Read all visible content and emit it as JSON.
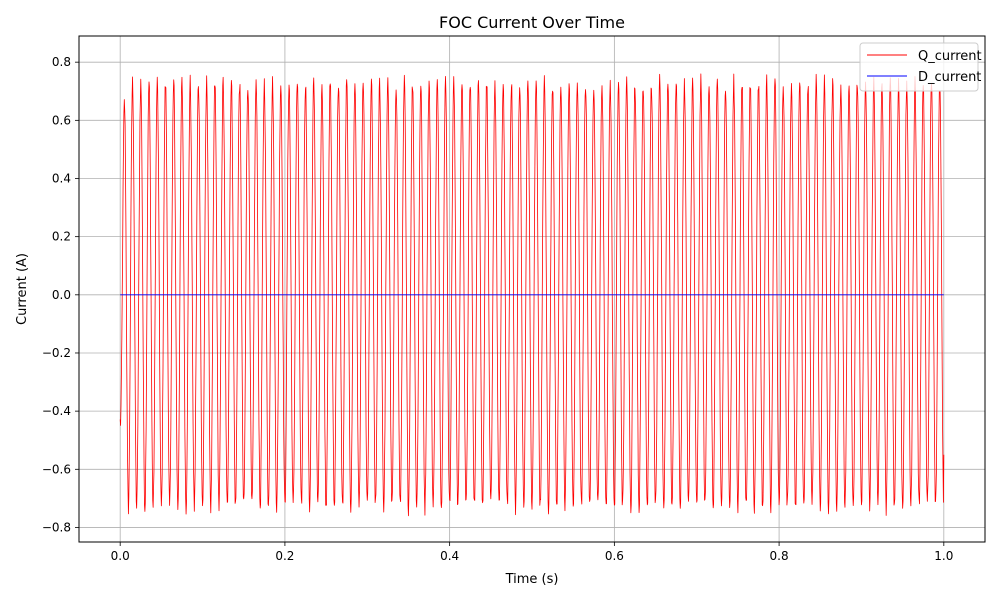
{
  "chart_data": {
    "type": "line",
    "title": "FOC Current Over Time",
    "xlabel": "Time (s)",
    "ylabel": "Current (A)",
    "xlim": [
      -0.05,
      1.05
    ],
    "ylim": [
      -0.85,
      0.89
    ],
    "x_ticks": [
      0.0,
      0.2,
      0.4,
      0.6,
      0.8,
      1.0
    ],
    "x_tick_labels": [
      "0.0",
      "0.2",
      "0.4",
      "0.6",
      "0.8",
      "1.0"
    ],
    "y_ticks": [
      -0.8,
      -0.6,
      -0.4,
      -0.2,
      0.0,
      0.2,
      0.4,
      0.6,
      0.8
    ],
    "y_tick_labels": [
      "−0.8",
      "−0.6",
      "−0.4",
      "−0.2",
      "0.0",
      "0.2",
      "0.4",
      "0.6",
      "0.8"
    ],
    "grid": true,
    "legend_position": "top-right",
    "series": [
      {
        "name": "Q_current",
        "color": "#ff0000",
        "sample_rate_hz": 2000,
        "x_start": 0.0,
        "x_end": 1.0,
        "oscillation_frequency_hz": 100,
        "amplitude": 0.73,
        "peak_max": 0.81,
        "peak_min": -0.77,
        "noise_amplitude": 0.03,
        "final_value": -0.55
      },
      {
        "name": "D_current",
        "color": "#0000ff",
        "x": [
          0.0,
          1.0
        ],
        "values": [
          0.0,
          0.0
        ]
      }
    ]
  }
}
